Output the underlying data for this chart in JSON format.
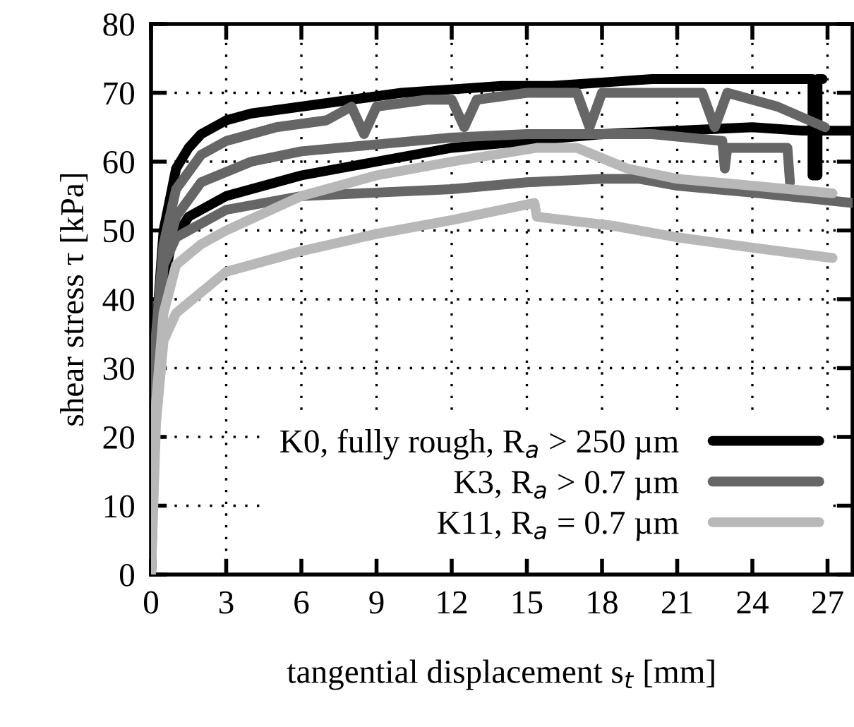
{
  "chart_data": {
    "type": "line",
    "xlabel": "tangential displacement s$_{t}$ [mm]",
    "ylabel": "shear stress τ [kPa]",
    "xlim": [
      0,
      28
    ],
    "xticks": [
      0,
      3,
      6,
      9,
      12,
      15,
      18,
      21,
      24,
      27
    ],
    "ylim": [
      0,
      80
    ],
    "yticks": [
      0,
      10,
      20,
      30,
      40,
      50,
      60,
      70,
      80
    ],
    "grid": true,
    "legend": "bottom right",
    "line_style": "solid",
    "marker": "none",
    "series": [
      {
        "name": "K0, fully rough, R$_{a}$ > 250 µm",
        "color": "#000000",
        "x": [
          0,
          0.2,
          0.5,
          1,
          1.5,
          2,
          3,
          4,
          6,
          8,
          10,
          12,
          14,
          16,
          18,
          20,
          22,
          24,
          26.4,
          26.4,
          26.6,
          26.6,
          26.8
        ],
        "values": [
          0,
          35,
          50,
          59,
          62,
          64,
          66,
          67,
          68,
          69,
          70,
          70.5,
          71,
          71,
          71.5,
          72,
          72,
          72,
          72,
          58,
          58,
          72,
          72
        ]
      },
      {
        "color": "#000000",
        "x": [
          0,
          0.2,
          0.5,
          0.8,
          1.5,
          3,
          6,
          9,
          12,
          15,
          18,
          21,
          24,
          26,
          28
        ],
        "values": [
          0,
          30,
          42,
          48,
          52,
          55,
          58,
          60,
          62,
          63,
          64,
          64.5,
          65,
          64.5,
          64.5
        ]
      },
      {
        "name": "K3, R$_{a}$ > 0.7 µm",
        "color": "#666666",
        "x": [
          0,
          0.2,
          0.5,
          1,
          2,
          3,
          5,
          7,
          8,
          8.5,
          9,
          11,
          12,
          12.5,
          13,
          15,
          17,
          17.5,
          18,
          20,
          22,
          22.5,
          23,
          25,
          26.9
        ],
        "values": [
          0,
          35,
          48,
          56,
          61,
          63,
          65,
          66,
          68,
          64,
          68,
          69,
          69,
          65,
          69,
          70,
          70,
          65,
          70,
          70,
          70,
          65,
          70,
          68,
          65
        ]
      },
      {
        "color": "#666666",
        "x": [
          0,
          0.2,
          0.5,
          1,
          2,
          4,
          6,
          9,
          12,
          15,
          18,
          20,
          22.8,
          22.9,
          23,
          25.4,
          25.5
        ],
        "values": [
          0,
          33,
          45,
          52,
          57,
          60,
          61.5,
          62.5,
          63.5,
          64,
          64,
          64,
          63,
          59,
          62,
          62,
          57
        ]
      },
      {
        "color": "#666666",
        "x": [
          0,
          0.2,
          0.5,
          1,
          3,
          6,
          9,
          12,
          15,
          18,
          19.5,
          21,
          24,
          28
        ],
        "values": [
          0,
          30,
          45,
          49,
          53,
          55,
          55.5,
          56,
          57,
          57.5,
          57.5,
          56.5,
          55.5,
          54
        ]
      },
      {
        "name": "K11, R$_{a}$ = 0.7 µm",
        "color": "#b8b8b8",
        "x": [
          0,
          0.2,
          0.5,
          1,
          2,
          3,
          6,
          9,
          12,
          15.4,
          17,
          19,
          21,
          24,
          27.2
        ],
        "values": [
          0,
          25,
          38,
          45,
          48,
          50,
          55,
          58,
          60,
          62,
          62,
          59,
          57.5,
          56.5,
          55.4
        ]
      },
      {
        "color": "#b8b8b8",
        "x": [
          0,
          0.2,
          0.5,
          1,
          3,
          6,
          9,
          12,
          15.3,
          15.4,
          18.4,
          21,
          24,
          27.2
        ],
        "values": [
          0,
          22,
          34,
          38,
          44,
          47,
          49.5,
          51.5,
          54,
          52,
          50.7,
          49,
          47.5,
          46
        ]
      }
    ]
  }
}
